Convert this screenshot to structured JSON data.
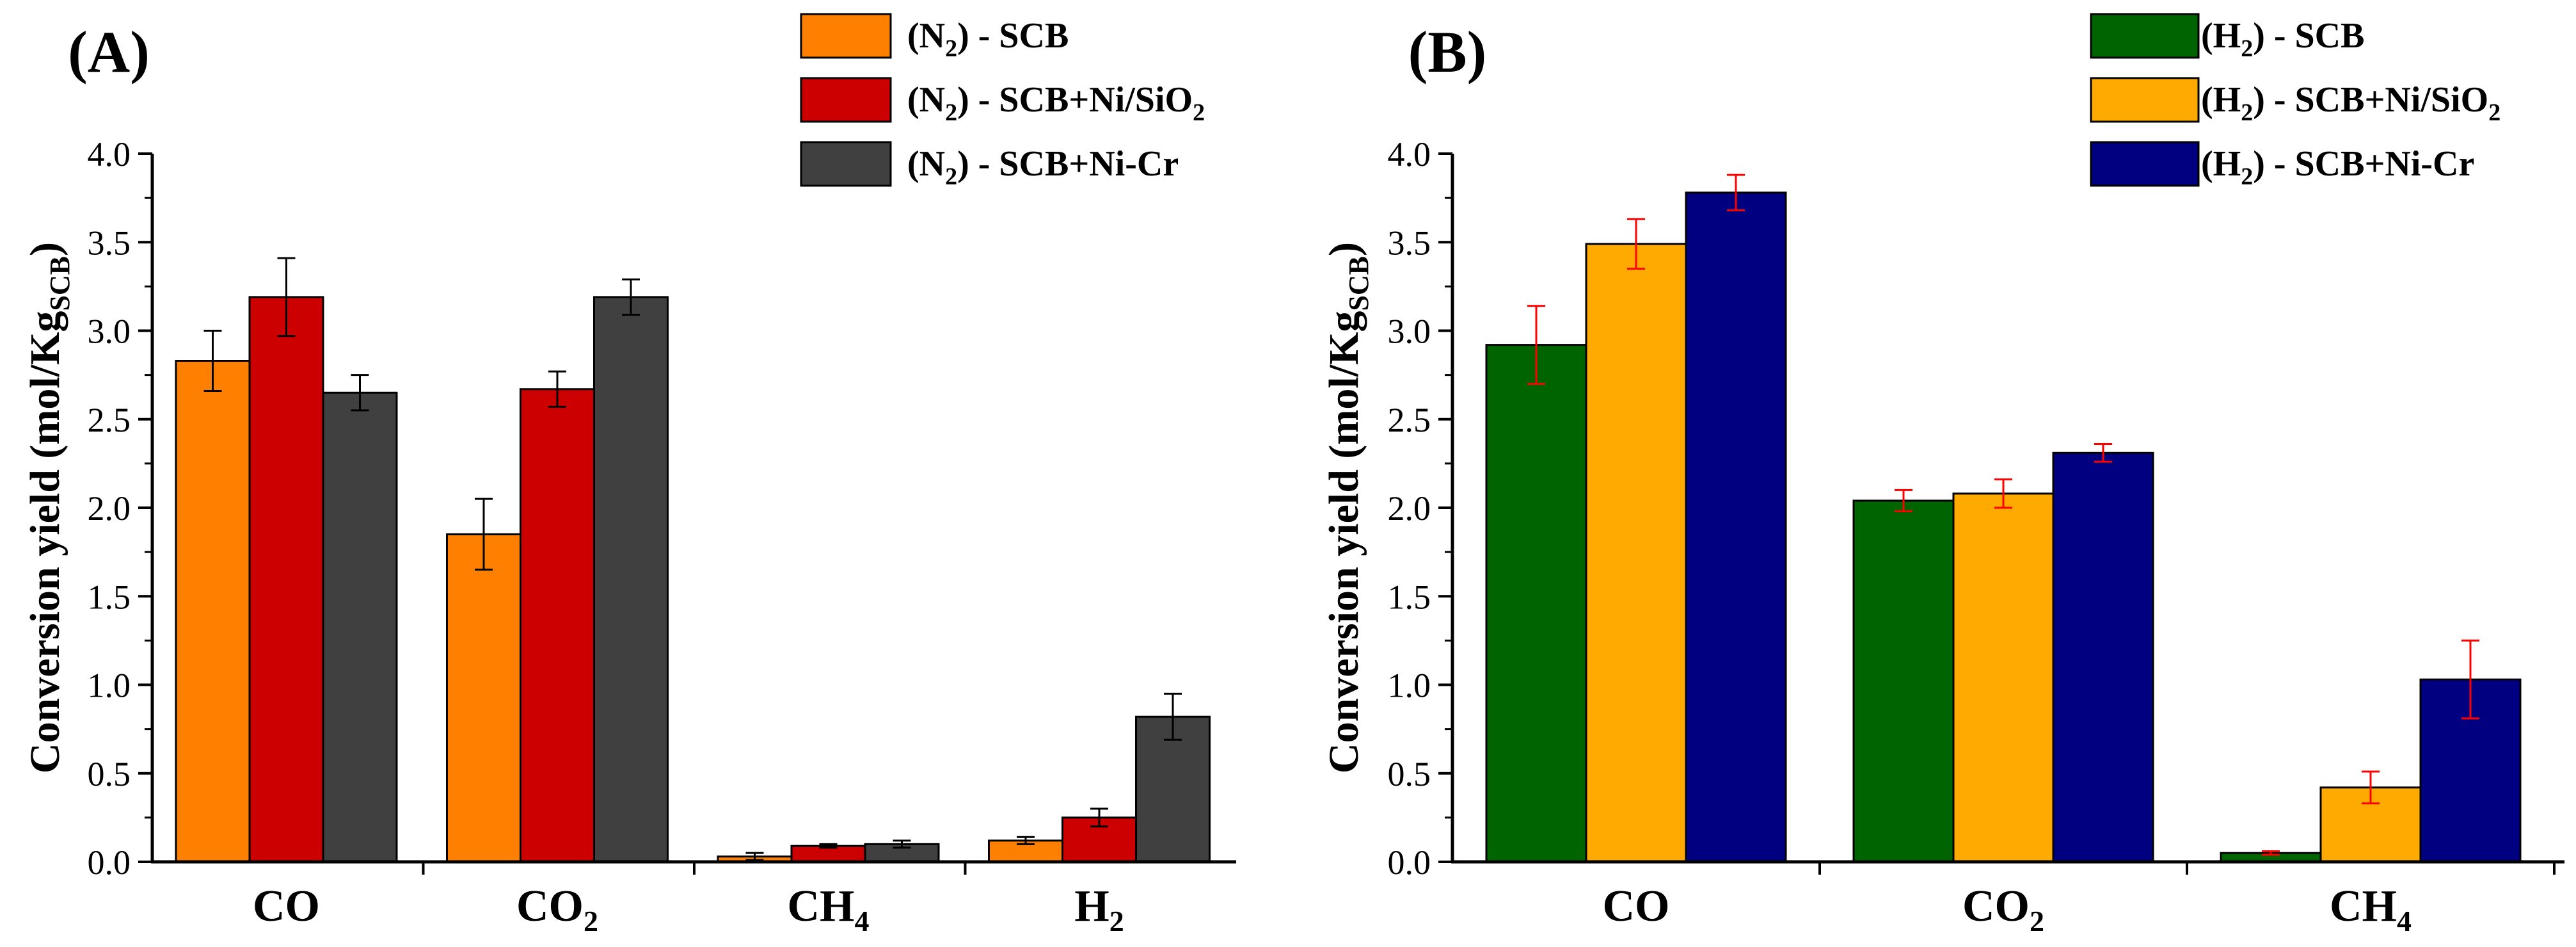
{
  "chart_data": [
    {
      "type": "bar",
      "panel_label": "(A)",
      "ylabel": {
        "main": "Conversion yield (mol/Kg",
        "sub": "SCB",
        "close": ")"
      },
      "ylim": [
        0,
        4.0
      ],
      "yticks": [
        "0.0",
        "0.5",
        "1.0",
        "1.5",
        "2.0",
        "2.5",
        "3.0",
        "3.5",
        "4.0"
      ],
      "categories": [
        {
          "main": "CO",
          "sub": ""
        },
        {
          "main": "CO",
          "sub": "2"
        },
        {
          "main": "CH",
          "sub": "4"
        },
        {
          "main": "H",
          "sub": "2"
        }
      ],
      "series": [
        {
          "legend": {
            "pre": "(N",
            "sub1": "2",
            "mid": ") - SCB",
            "sub2": ""
          },
          "color": "#FF8000",
          "values": [
            2.83,
            1.85,
            0.03,
            0.12
          ],
          "errors": [
            0.17,
            0.2,
            0.02,
            0.02
          ]
        },
        {
          "legend": {
            "pre": "(N",
            "sub1": "2",
            "mid": ") - SCB+Ni/SiO",
            "sub2": "2"
          },
          "color": "#CC0000",
          "values": [
            3.19,
            2.67,
            0.09,
            0.25
          ],
          "errors": [
            0.22,
            0.1,
            0.01,
            0.05
          ]
        },
        {
          "legend": {
            "pre": "(N",
            "sub1": "2",
            "mid": ") - SCB+Ni-Cr",
            "sub2": ""
          },
          "color": "#404040",
          "values": [
            2.65,
            3.19,
            0.1,
            0.82
          ],
          "errors": [
            0.1,
            0.1,
            0.02,
            0.13
          ]
        }
      ],
      "error_color": "#000000"
    },
    {
      "type": "bar",
      "panel_label": "(B)",
      "ylabel": {
        "main": "Conversion yield (mol/Kg",
        "sub": "SCB",
        "close": ")"
      },
      "ylim": [
        0,
        4.0
      ],
      "yticks": [
        "0.0",
        "0.5",
        "1.0",
        "1.5",
        "2.0",
        "2.5",
        "3.0",
        "3.5",
        "4.0"
      ],
      "categories": [
        {
          "main": "CO",
          "sub": ""
        },
        {
          "main": "CO",
          "sub": "2"
        },
        {
          "main": "CH",
          "sub": "4"
        }
      ],
      "series": [
        {
          "legend": {
            "pre": "(H",
            "sub1": "2",
            "mid": ") - SCB",
            "sub2": ""
          },
          "color": "#006400",
          "values": [
            2.92,
            2.04,
            0.05
          ],
          "errors": [
            0.22,
            0.06,
            0.01
          ]
        },
        {
          "legend": {
            "pre": "(H",
            "sub1": "2",
            "mid": ") - SCB+Ni/SiO",
            "sub2": "2"
          },
          "color": "#FFAA00",
          "values": [
            3.49,
            2.08,
            0.42
          ],
          "errors": [
            0.14,
            0.08,
            0.09
          ]
        },
        {
          "legend": {
            "pre": "(H",
            "sub1": "2",
            "mid": ") - SCB+Ni-Cr",
            "sub2": ""
          },
          "color": "#000080",
          "values": [
            3.78,
            2.31,
            1.03
          ],
          "errors": [
            0.1,
            0.05,
            0.22
          ]
        }
      ],
      "error_color": "#FF0000"
    }
  ]
}
